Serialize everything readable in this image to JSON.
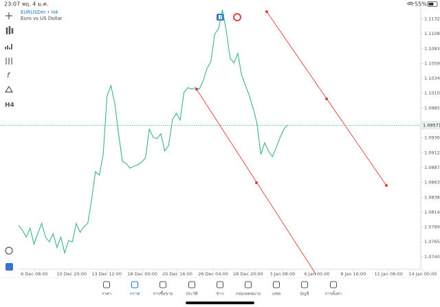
{
  "status_bar": {
    "time": "23:07",
    "date": "พฤ. 4 ม.ค.",
    "battery": "55%"
  },
  "toolbar": {
    "timeframe": "H4"
  },
  "chart_data": {
    "type": "line",
    "title": "EURUSDm • H4",
    "subtitle": "Euro vs US Dollar",
    "series": [
      {
        "color": "#3cb47c",
        "values": [
          1.07922,
          1.07843,
          1.07729,
          1.07877,
          1.07616,
          1.07786,
          1.07956,
          1.07729,
          1.0765,
          1.07786,
          1.07559,
          1.07729,
          1.07468,
          1.07673,
          1.0765,
          1.07956,
          1.07809,
          1.079,
          1.07956,
          1.08353,
          1.08807,
          1.0875,
          1.09091,
          1.10055,
          1.10225,
          1.09941,
          1.09431,
          1.08977,
          1.08943,
          1.08864,
          1.08898,
          1.0892,
          1.08966,
          1.09034,
          1.0951,
          1.09374,
          1.09351,
          1.09431,
          1.09147,
          1.09238,
          1.09658,
          1.09771,
          1.09658,
          1.10111,
          1.10191,
          1.10168,
          1.10191,
          1.10168,
          1.10304,
          1.10508,
          1.10622,
          1.11075,
          1.11166,
          1.11472,
          1.11132,
          1.10678,
          1.10599,
          1.10758,
          1.10395,
          1.10225,
          1.10055,
          1.0985,
          1.09601,
          1.09091,
          1.09283,
          1.09147,
          1.09056,
          1.09204,
          1.09374,
          1.0951,
          1.09578
        ]
      }
    ],
    "xlim": [
      0,
      106
    ],
    "xticks": [
      {
        "value": 4.1,
        "label": "6 Dec 08:00"
      },
      {
        "value": 13.8,
        "label": "10 Dec 20:00"
      },
      {
        "value": 22.9,
        "label": "13 Dec 12:00"
      },
      {
        "value": 32.2,
        "label": "18 Dec 00:00"
      },
      {
        "value": 41.3,
        "label": "20 Dec 16:00"
      },
      {
        "value": 50.6,
        "label": "26 Dec 04:00"
      },
      {
        "value": 59.7,
        "label": "28 Dec 20:00"
      },
      {
        "value": 68.6,
        "label": "3 Jan 08:00"
      },
      {
        "value": 77.6,
        "label": "6 Jan 00:00"
      },
      {
        "value": 87.0,
        "label": "8 Jan 16:00"
      },
      {
        "value": 96.2,
        "label": "11 Jan 08:00"
      },
      {
        "value": 105.1,
        "label": "14 Jan 00:00"
      }
    ],
    "ylim": [
      1.072,
      1.115
    ],
    "yticks": [
      1.11325,
      {
        "value": 1.1108,
        "label": "1.11080"
      },
      1.10835,
      {
        "value": 1.1059,
        "label": "1.10590"
      },
      1.10345,
      {
        "value": 1.101,
        "label": "1.10100"
      },
      1.09855,
      1.09365,
      {
        "value": 1.0912,
        "label": "1.09120"
      },
      1.08875,
      {
        "value": 1.0863,
        "label": "1.08630"
      },
      1.08385,
      {
        "value": 1.0814,
        "label": "1.08140"
      },
      1.07895,
      {
        "value": 1.0765,
        "label": "1.07650"
      },
      1.07405
    ],
    "current_price": 1.09571
  },
  "nav": [
    "ราคา",
    "กราฟ",
    "การซื้อขาย",
    "ประวัติ",
    "ข่าว",
    "กล่องจดหมาย",
    "แชท",
    "บัญชี",
    "การตั้งค่า"
  ]
}
